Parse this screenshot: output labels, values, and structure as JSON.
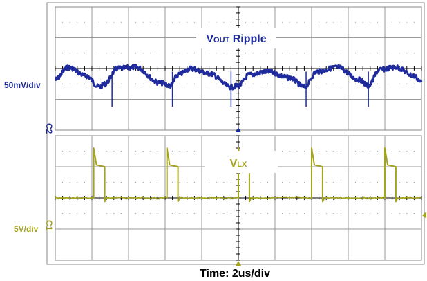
{
  "colors": {
    "ch1": "#1f2b9c",
    "ch2": "#a3a31e",
    "grid": "#9a9a9a",
    "frame": "#888888",
    "dark": "#000000"
  },
  "chart_data": [
    {
      "type": "line",
      "title": "VOUT Ripple",
      "title_parts": {
        "main": "V",
        "sub": "OUT",
        "rest": " Ripple"
      },
      "scale_label": "50mV/div",
      "channel_marker": "C2",
      "xlabel": "Time: 2us/div",
      "divisions": {
        "x": 10,
        "y": 4
      },
      "xlim": [
        -10,
        10
      ],
      "ylim": [
        -100,
        100
      ],
      "x_unit": "us",
      "y_unit": "mV",
      "series": [
        {
          "color": "#1f2b9c",
          "x": [
            -10.0,
            -9.3,
            -8.3,
            -7.6,
            -7.3,
            -6.6,
            -5.6,
            -4.3,
            -3.7,
            -3.3,
            -2.6,
            -1.6,
            -0.4,
            0.0,
            0.6,
            1.6,
            2.8,
            3.6,
            4.3,
            5.4,
            6.6,
            7.1,
            7.7,
            8.6,
            9.6,
            10.0
          ],
          "y": [
            -18,
            2,
            -12,
            -30,
            -25,
            0,
            2,
            -23,
            -28,
            -10,
            0,
            -8,
            -30,
            -28,
            -10,
            -5,
            -15,
            -30,
            -5,
            2,
            -18,
            -28,
            -2,
            2,
            -12,
            -22
          ]
        }
      ],
      "spikes_x": [
        -6.9,
        -3.6,
        -0.4,
        3.7,
        7.1
      ]
    },
    {
      "type": "line",
      "title": "VLX",
      "title_parts": {
        "main": "V",
        "sub": "LX",
        "rest": ""
      },
      "scale_label": "5V/div",
      "channel_marker": "C1",
      "divisions": {
        "x": 10,
        "y": 4
      },
      "xlim": [
        -10,
        10
      ],
      "ylim": [
        -10,
        10
      ],
      "x_unit": "us",
      "y_unit": "V",
      "low_level": 0,
      "high_level": 5,
      "pulses": [
        {
          "rise": -7.9,
          "fall": -7.3
        },
        {
          "rise": -3.9,
          "fall": -3.3
        },
        {
          "rise": 0.0,
          "fall": 0.6
        },
        {
          "rise": 4.0,
          "fall": 4.6
        },
        {
          "rise": 8.0,
          "fall": 8.6
        }
      ],
      "overshoot": 8
    }
  ]
}
